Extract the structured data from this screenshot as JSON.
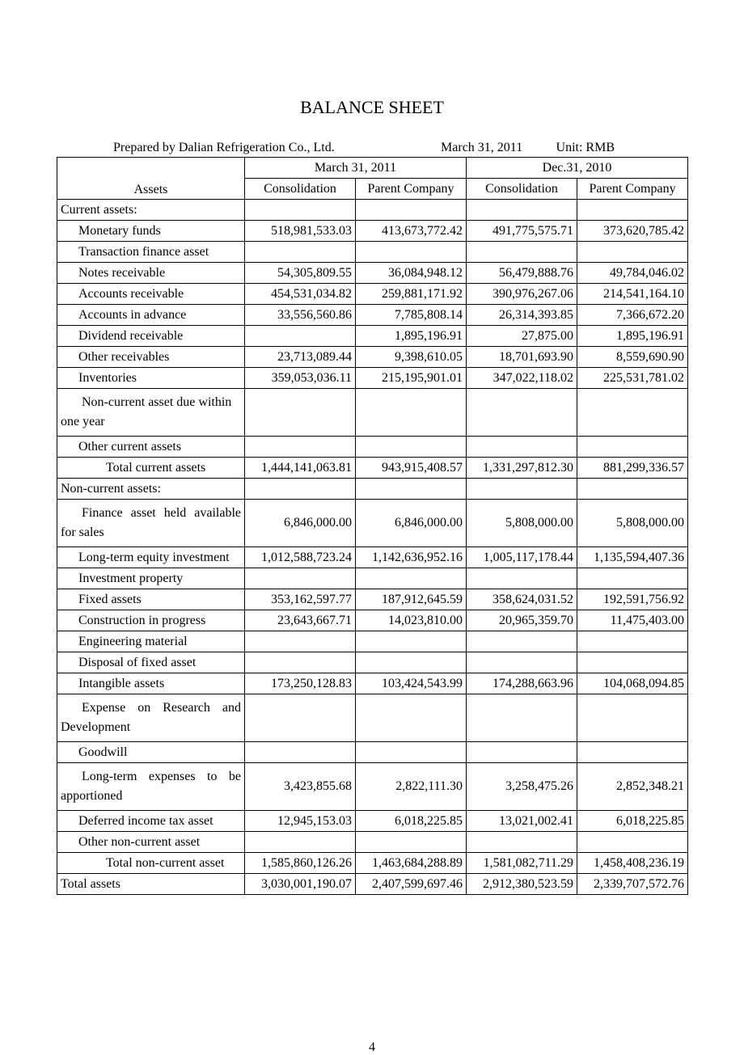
{
  "title": "BALANCE SHEET",
  "meta": {
    "prepared": "Prepared by Dalian Refrigeration Co., Ltd.",
    "date": "March 31, 2011",
    "unit": "Unit: RMB"
  },
  "headers": {
    "assets": "Assets",
    "period1": "March 31, 2011",
    "period2": "Dec.31, 2010",
    "consolidation": "Consolidation",
    "parent": "Parent Company"
  },
  "rows": [
    {
      "label": "Current assets:",
      "indent": 0,
      "v": [
        "",
        "",
        "",
        ""
      ]
    },
    {
      "label": "Monetary funds",
      "indent": 1,
      "v": [
        "518,981,533.03",
        "413,673,772.42",
        "491,775,575.71",
        "373,620,785.42"
      ]
    },
    {
      "label": "Transaction finance asset",
      "indent": 1,
      "v": [
        "",
        "",
        "",
        ""
      ]
    },
    {
      "label": "Notes receivable",
      "indent": 1,
      "v": [
        "54,305,809.55",
        "36,084,948.12",
        "56,479,888.76",
        "49,784,046.02"
      ]
    },
    {
      "label": "Accounts receivable",
      "indent": 1,
      "v": [
        "454,531,034.82",
        "259,881,171.92",
        "390,976,267.06",
        "214,541,164.10"
      ]
    },
    {
      "label": "Accounts in advance",
      "indent": 1,
      "v": [
        "33,556,560.86",
        "7,785,808.14",
        "26,314,393.85",
        "7,366,672.20"
      ]
    },
    {
      "label": "Dividend receivable",
      "indent": 1,
      "v": [
        "",
        "1,895,196.91",
        "27,875.00",
        "1,895,196.91"
      ]
    },
    {
      "label": "Other receivables",
      "indent": 1,
      "v": [
        "23,713,089.44",
        "9,398,610.05",
        "18,701,693.90",
        "8,559,690.90"
      ]
    },
    {
      "label": "Inventories",
      "indent": 1,
      "v": [
        "359,053,036.11",
        "215,195,901.01",
        "347,022,118.02",
        "225,531,781.02"
      ]
    },
    {
      "label": "Non-current asset due within one year",
      "indent": 1,
      "multiline": true,
      "v": [
        "",
        "",
        "",
        ""
      ]
    },
    {
      "label": "Other current assets",
      "indent": 1,
      "v": [
        "",
        "",
        "",
        ""
      ]
    },
    {
      "label": "Total current assets",
      "indent": 2,
      "v": [
        "1,444,141,063.81",
        "943,915,408.57",
        "1,331,297,812.30",
        "881,299,336.57"
      ]
    },
    {
      "label": "Non-current assets:",
      "indent": 0,
      "v": [
        "",
        "",
        "",
        ""
      ]
    },
    {
      "label": "Finance asset held available for sales",
      "indent": 1,
      "multiline": true,
      "justify": true,
      "v": [
        "6,846,000.00",
        "6,846,000.00",
        "5,808,000.00",
        "5,808,000.00"
      ]
    },
    {
      "label": "Long-term equity investment",
      "indent": 1,
      "v": [
        "1,012,588,723.24",
        "1,142,636,952.16",
        "1,005,117,178.44",
        "1,135,594,407.36"
      ]
    },
    {
      "label": "Investment property",
      "indent": 1,
      "v": [
        "",
        "",
        "",
        ""
      ]
    },
    {
      "label": "Fixed assets",
      "indent": 1,
      "v": [
        "353,162,597.77",
        "187,912,645.59",
        "358,624,031.52",
        "192,591,756.92"
      ]
    },
    {
      "label": "Construction in progress",
      "indent": 1,
      "v": [
        "23,643,667.71",
        "14,023,810.00",
        "20,965,359.70",
        "11,475,403.00"
      ]
    },
    {
      "label": "Engineering material",
      "indent": 1,
      "v": [
        "",
        "",
        "",
        ""
      ]
    },
    {
      "label": "Disposal of fixed asset",
      "indent": 1,
      "v": [
        "",
        "",
        "",
        ""
      ]
    },
    {
      "label": "Intangible assets",
      "indent": 1,
      "v": [
        "173,250,128.83",
        "103,424,543.99",
        "174,288,663.96",
        "104,068,094.85"
      ]
    },
    {
      "label": "Expense on Research and Development",
      "indent": 1,
      "multiline": true,
      "justify": true,
      "v": [
        "",
        "",
        "",
        ""
      ]
    },
    {
      "label": "Goodwill",
      "indent": 1,
      "v": [
        "",
        "",
        "",
        ""
      ]
    },
    {
      "label": "Long-term expenses to be apportioned",
      "indent": 1,
      "multiline": true,
      "justify": true,
      "v": [
        "3,423,855.68",
        "2,822,111.30",
        "3,258,475.26",
        "2,852,348.21"
      ]
    },
    {
      "label": "Deferred income tax asset",
      "indent": 1,
      "v": [
        "12,945,153.03",
        "6,018,225.85",
        "13,021,002.41",
        "6,018,225.85"
      ]
    },
    {
      "label": "Other non-current asset",
      "indent": 1,
      "v": [
        "",
        "",
        "",
        ""
      ]
    },
    {
      "label": "Total non-current asset",
      "indent": 2,
      "v": [
        "1,585,860,126.26",
        "1,463,684,288.89",
        "1,581,082,711.29",
        "1,458,408,236.19"
      ]
    },
    {
      "label": "Total assets",
      "indent": 0,
      "v": [
        "3,030,001,190.07",
        "2,407,599,697.46",
        "2,912,380,523.59",
        "2,339,707,572.76"
      ]
    }
  ],
  "pageNumber": "4"
}
